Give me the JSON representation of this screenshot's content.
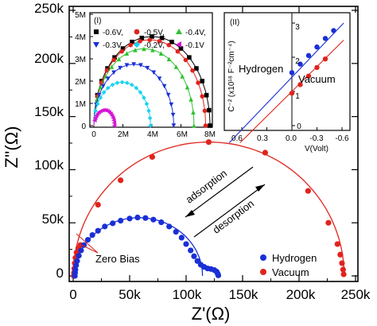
{
  "colors": {
    "hydrogen": "#1a2fd6",
    "vacuum": "#e0241e",
    "black": "#000000"
  },
  "main": {
    "xlabel": "Z'(Ω)",
    "ylabel": "Z''(Ω)",
    "xticks": [
      "0",
      "50k",
      "100k",
      "150k",
      "200k",
      "250k"
    ],
    "yticks": [
      "0",
      "50k",
      "100k",
      "150k",
      "200k",
      "250k"
    ],
    "legend": [
      "Hydrogen",
      "Vacuum"
    ],
    "annotations": {
      "adsorption": "adsorption",
      "desorption": "desorption",
      "zero_bias": "Zero Bias"
    }
  },
  "inset1": {
    "panel_label": "(I)",
    "xticks": [
      "0",
      "2M",
      "4M",
      "6M",
      "8M"
    ],
    "yticks": [
      "0",
      "1M",
      "2M",
      "3M",
      "4M",
      "5M"
    ],
    "legend": [
      "-0.6V,",
      "-0.5V,",
      "-0.4V,",
      "-0.3V,",
      "-0.2V,",
      "-0.1V"
    ]
  },
  "inset2": {
    "panel_label": "(II)",
    "xlabel": "V(Volt)",
    "ylabel": "C⁻² (x10¹⁸ F⁻²cm⁻⁴)",
    "xticks": [
      "0.6",
      "0.3",
      "0.0",
      "-0.3",
      "-0.6"
    ],
    "yticks": [
      "0",
      "1",
      "2",
      "3"
    ],
    "label_hydrogen": "Hydrogen",
    "label_vacuum": "Vacuum"
  },
  "chart_data": [
    {
      "type": "scatter",
      "xlim": [
        -5000,
        250000
      ],
      "ylim": [
        -5000,
        250000
      ],
      "xlabel": "Z'(Ω)",
      "ylabel": "Z''(Ω)",
      "legend_position": "bottom-right",
      "series": [
        {
          "name": "Hydrogen",
          "color": "#1a2fd6",
          "points": [
            [
              1500,
              0
            ],
            [
              1700,
              3000
            ],
            [
              2000,
              6000
            ],
            [
              2600,
              10000
            ],
            [
              3500,
              14000
            ],
            [
              5000,
              19000
            ],
            [
              7000,
              24000
            ],
            [
              9500,
              29000
            ],
            [
              13000,
              34000
            ],
            [
              17000,
              38500
            ],
            [
              22000,
              42500
            ],
            [
              28000,
              46500
            ],
            [
              35000,
              49500
            ],
            [
              42000,
              52000
            ],
            [
              50000,
              54000
            ],
            [
              57000,
              55000
            ],
            [
              64000,
              54500
            ],
            [
              71000,
              53000
            ],
            [
              78000,
              50500
            ],
            [
              85000,
              46500
            ],
            [
              91000,
              41500
            ],
            [
              96000,
              36000
            ],
            [
              100000,
              30000
            ],
            [
              104000,
              24000
            ],
            [
              107000,
              18500
            ],
            [
              110000,
              14000
            ],
            [
              113000,
              10500
            ],
            [
              116000,
              8500
            ],
            [
              119000,
              7000
            ],
            [
              122000,
              6500
            ],
            [
              125000,
              5500
            ],
            [
              127000,
              4000
            ],
            [
              128000,
              2000
            ],
            [
              128500,
              500
            ]
          ]
        },
        {
          "name": "Vacuum",
          "color": "#e0241e",
          "points": [
            [
              500,
              0
            ],
            [
              700,
              3000
            ],
            [
              1000,
              7000
            ],
            [
              1400,
              12000
            ],
            [
              2000,
              17000
            ],
            [
              3000,
              22000
            ],
            [
              4500,
              26000
            ],
            [
              6500,
              29000
            ],
            [
              22000,
              67000
            ],
            [
              42000,
              90000
            ],
            [
              70000,
              112000
            ],
            [
              120000,
              126000
            ],
            [
              170000,
              116000
            ],
            [
              208000,
              80000
            ],
            [
              226000,
              50000
            ],
            [
              234000,
              30000
            ],
            [
              236500,
              20000
            ],
            [
              238000,
              12000
            ],
            [
              239000,
              6000
            ],
            [
              239500,
              1500
            ]
          ]
        }
      ],
      "annotations": [
        "adsorption",
        "desorption",
        "Zero Bias"
      ]
    },
    {
      "type": "scatter",
      "title": "(I)",
      "xlim": [
        -500000,
        8500000
      ],
      "ylim": [
        -300000,
        5000000
      ],
      "series": [
        {
          "name": "-0.6V,",
          "color": "#000000",
          "marker": "square",
          "diameter": 8000000
        },
        {
          "name": "-0.5V,",
          "color": "#e0241e",
          "marker": "circle",
          "diameter": 7700000
        },
        {
          "name": "-0.4V,",
          "color": "#2ec12e",
          "marker": "triangle-up",
          "diameter": 6900000
        },
        {
          "name": "-0.3V,",
          "color": "#1a2fd6",
          "marker": "triangle-down",
          "diameter": 5500000
        },
        {
          "name": "-0.2V,",
          "color": "#19d3f0",
          "marker": "diamond",
          "diameter": 3900000
        },
        {
          "name": "-0.1V",
          "color": "#d515d5",
          "marker": "triangle-left",
          "diameter": 1400000
        }
      ]
    },
    {
      "type": "line",
      "title": "(II)",
      "xlabel": "V(Volt)",
      "ylabel": "C⁻² (x10¹⁸ F⁻²cm⁻⁴)",
      "x_reversed": true,
      "xlim": [
        0.9,
        -0.72
      ],
      "ylim": [
        -0.5,
        3.0
      ],
      "series": [
        {
          "name": "Hydrogen",
          "color": "#1a2fd6",
          "fit": [
            [
              0.75,
              -0.5
            ],
            [
              -0.62,
              3.0
            ]
          ],
          "points": [
            [
              0.0,
              1.55
            ],
            [
              -0.1,
              1.8
            ],
            [
              -0.2,
              2.05
            ],
            [
              -0.3,
              2.3
            ],
            [
              -0.4,
              2.55
            ],
            [
              -0.5,
              2.78
            ]
          ]
        },
        {
          "name": "Vacuum",
          "color": "#e0241e",
          "fit": [
            [
              0.62,
              -0.5
            ],
            [
              -0.62,
              2.5
            ]
          ],
          "points": [
            [
              0.0,
              0.95
            ],
            [
              -0.1,
              1.2
            ],
            [
              -0.2,
              1.45
            ],
            [
              -0.3,
              1.7
            ],
            [
              -0.4,
              1.95
            ]
          ]
        }
      ]
    }
  ]
}
